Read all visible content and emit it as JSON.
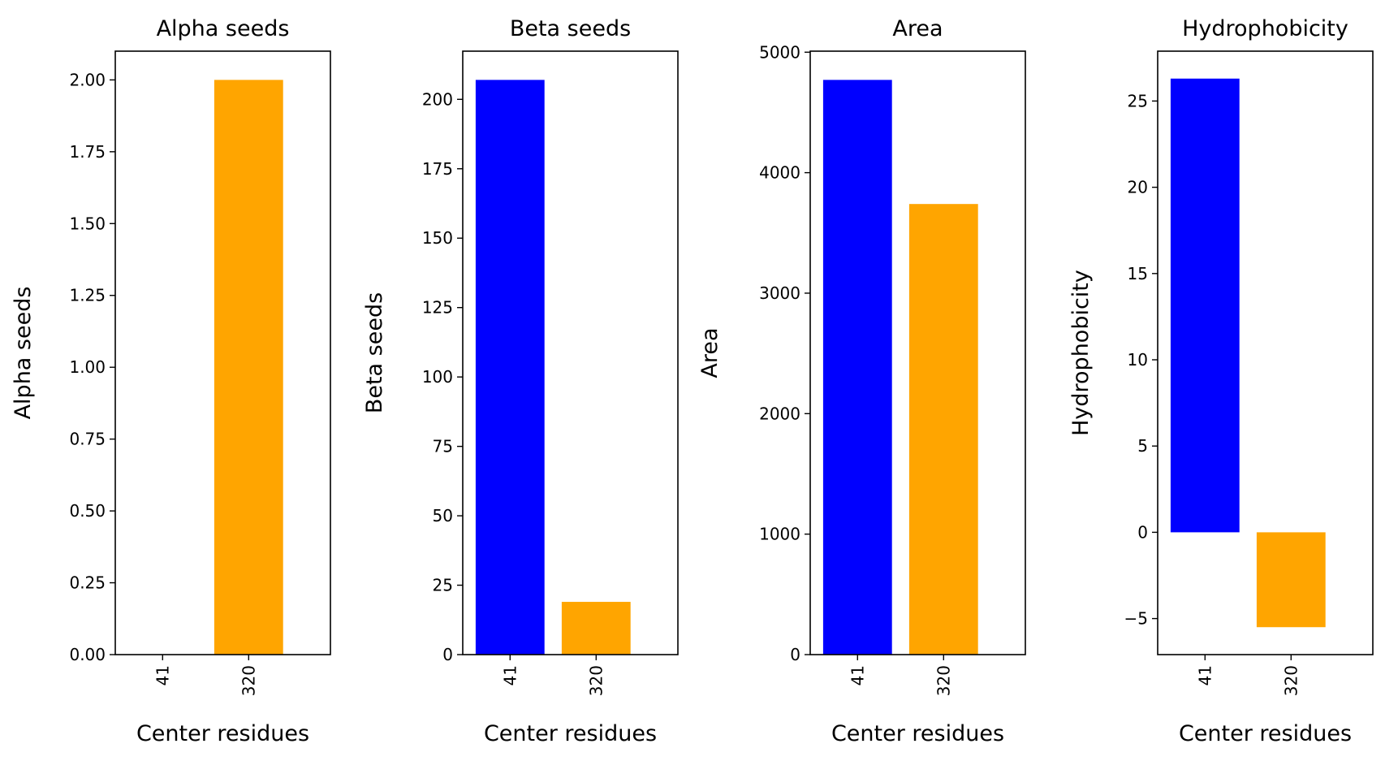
{
  "chart_data": [
    {
      "type": "bar",
      "title": "Alpha seeds",
      "xlabel": "Center residues",
      "ylabel": "Alpha seeds",
      "categories": [
        "41",
        "320"
      ],
      "values": [
        0,
        2.0
      ],
      "colors": [
        "#0000ff",
        "#ffa500"
      ],
      "ylim": [
        0,
        2.1
      ],
      "yticks": [
        0.0,
        0.25,
        0.5,
        0.75,
        1.0,
        1.25,
        1.5,
        1.75,
        2.0
      ],
      "ytick_labels": [
        "0.00",
        "0.25",
        "0.50",
        "0.75",
        "1.00",
        "1.25",
        "1.50",
        "1.75",
        "2.00"
      ],
      "grid": false
    },
    {
      "type": "bar",
      "title": "Beta seeds",
      "xlabel": "Center residues",
      "ylabel": "Beta seeds",
      "categories": [
        "41",
        "320"
      ],
      "values": [
        207,
        19
      ],
      "colors": [
        "#0000ff",
        "#ffa500"
      ],
      "ylim": [
        0,
        217.35
      ],
      "yticks": [
        0,
        25,
        50,
        75,
        100,
        125,
        150,
        175,
        200
      ],
      "ytick_labels": [
        "0",
        "25",
        "50",
        "75",
        "100",
        "125",
        "150",
        "175",
        "200"
      ],
      "grid": false
    },
    {
      "type": "bar",
      "title": "Area",
      "xlabel": "Center residues",
      "ylabel": "Area",
      "categories": [
        "41",
        "320"
      ],
      "values": [
        4770,
        3740
      ],
      "colors": [
        "#0000ff",
        "#ffa500"
      ],
      "ylim": [
        0,
        5008.5
      ],
      "yticks": [
        0,
        1000,
        2000,
        3000,
        4000,
        5000
      ],
      "ytick_labels": [
        "0",
        "1000",
        "2000",
        "3000",
        "4000",
        "5000"
      ],
      "grid": false
    },
    {
      "type": "bar",
      "title": "Hydrophobicity",
      "xlabel": "Center residues",
      "ylabel": "Hydrophobicity",
      "categories": [
        "41",
        "320"
      ],
      "values": [
        26.3,
        -5.5
      ],
      "colors": [
        "#0000ff",
        "#ffa500"
      ],
      "ylim": [
        -7.09,
        27.89
      ],
      "yticks": [
        -5,
        0,
        5,
        10,
        15,
        20,
        25
      ],
      "ytick_labels": [
        "−5",
        "0",
        "5",
        "10",
        "15",
        "20",
        "25"
      ],
      "grid": false
    }
  ]
}
